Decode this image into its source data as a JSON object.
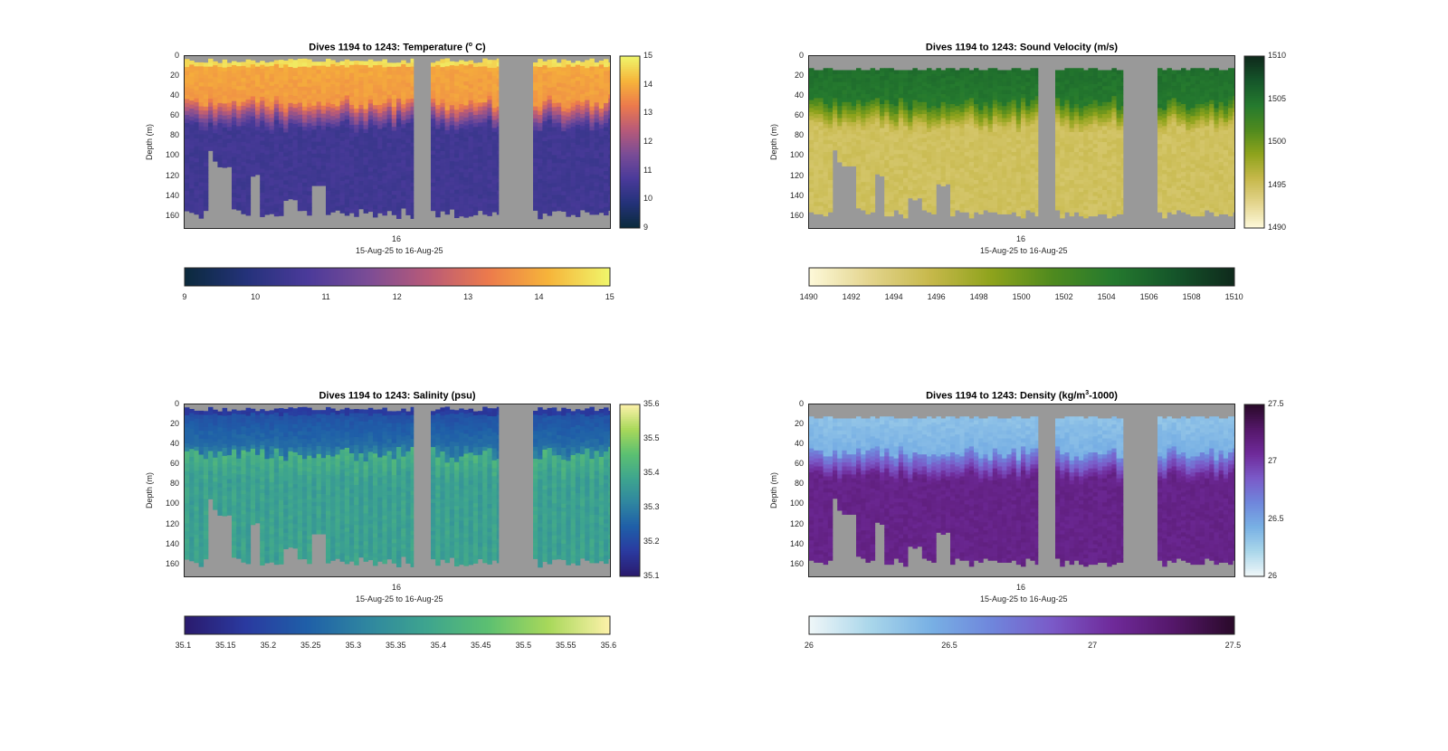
{
  "x_label": "15-Aug-25 to 16-Aug-25",
  "x_tick": "16",
  "y_label": "Depth (m)",
  "y_ticks": [
    "0",
    "20",
    "40",
    "60",
    "80",
    "100",
    "120",
    "140",
    "160"
  ],
  "no_data_color": "#999999",
  "chart_data": [
    {
      "id": "temperature",
      "type": "heatmap",
      "title_prefix": "Dives 1194 to 1243: Temperature (",
      "title_sup": "o",
      "title_suffix": " C)",
      "ylabel": "Depth (m)",
      "ylim": [
        172,
        0
      ],
      "clim": [
        9,
        15
      ],
      "vertical_colorbar_ticks": [
        "15",
        "14",
        "13",
        "12",
        "11",
        "10",
        "9"
      ],
      "horizontal_colorbar_ticks": [
        "9",
        "10",
        "11",
        "12",
        "13",
        "14",
        "15"
      ],
      "colormap": [
        "#0b2a3d",
        "#24327a",
        "#4a3a9a",
        "#7a4c96",
        "#b85a78",
        "#ec7a4c",
        "#f6b43a",
        "#f0f56a"
      ],
      "profile": {
        "surface": 14.7,
        "upper": 14.0,
        "mid": 13.4,
        "deep": 10.5
      },
      "thermocline_depth": [
        48,
        62
      ]
    },
    {
      "id": "sound_velocity",
      "type": "heatmap",
      "title_prefix": "Dives 1194 to 1243: Sound Velocity (m/s)",
      "title_sup": "",
      "title_suffix": "",
      "ylabel": "Depth (m)",
      "ylim": [
        172,
        0
      ],
      "clim": [
        1490,
        1510
      ],
      "vertical_colorbar_ticks": [
        "1510",
        "1505",
        "1500",
        "1495",
        "1490"
      ],
      "horizontal_colorbar_ticks": [
        "1490",
        "1492",
        "1494",
        "1496",
        "1498",
        "1500",
        "1502",
        "1504",
        "1506",
        "1508",
        "1510"
      ],
      "colormap": [
        "#fdf8d8",
        "#e3d48c",
        "#c6b84a",
        "#8ea31c",
        "#4f8a1e",
        "#257a2e",
        "#15562a",
        "#0f2a1c"
      ],
      "profile": {
        "surface": 1506.5,
        "upper": 1505.5,
        "mid": 1502.5,
        "deep": 1494.8
      },
      "thermocline_depth": [
        48,
        62
      ]
    },
    {
      "id": "salinity",
      "type": "heatmap",
      "title_prefix": "Dives 1194 to 1243: Salinity (psu)",
      "title_sup": "",
      "title_suffix": "",
      "ylabel": "Depth (m)",
      "ylim": [
        172,
        0
      ],
      "clim": [
        35.1,
        35.6
      ],
      "vertical_colorbar_ticks": [
        "35.6",
        "35.5",
        "35.4",
        "35.3",
        "35.2",
        "35.1"
      ],
      "horizontal_colorbar_ticks": [
        "35.1",
        "35.15",
        "35.2",
        "35.25",
        "35.3",
        "35.35",
        "35.4",
        "35.45",
        "35.5",
        "35.55",
        "35.6"
      ],
      "colormap": [
        "#2a1b6e",
        "#2a3aa0",
        "#1f5fa8",
        "#2f86a0",
        "#3ea58e",
        "#5cc071",
        "#a8d85a",
        "#fbf1a8"
      ],
      "profile": {
        "surface": 35.17,
        "upper": 35.2,
        "mid": 35.4,
        "deep": 35.36
      },
      "thermocline_depth": [
        50,
        66
      ]
    },
    {
      "id": "density",
      "type": "heatmap",
      "title_prefix": "Dives 1194 to 1243: Density (kg/m",
      "title_sup": "3",
      "title_suffix": "-1000)",
      "ylabel": "Depth (m)",
      "ylim": [
        172,
        0
      ],
      "clim": [
        26,
        27.5
      ],
      "vertical_colorbar_ticks": [
        "27.5",
        "27",
        "26.5",
        "26"
      ],
      "horizontal_colorbar_ticks": [
        "26",
        "26.5",
        "27",
        "27.5"
      ],
      "colormap": [
        "#eef6f8",
        "#a9d6ea",
        "#78b0e4",
        "#6f86dc",
        "#7a5ac8",
        "#6f2a9a",
        "#55176a",
        "#2a0a2a"
      ],
      "profile": {
        "surface": 26.15,
        "upper": 26.3,
        "mid": 26.6,
        "deep": 27.15
      },
      "thermocline_depth": [
        50,
        64
      ]
    }
  ]
}
